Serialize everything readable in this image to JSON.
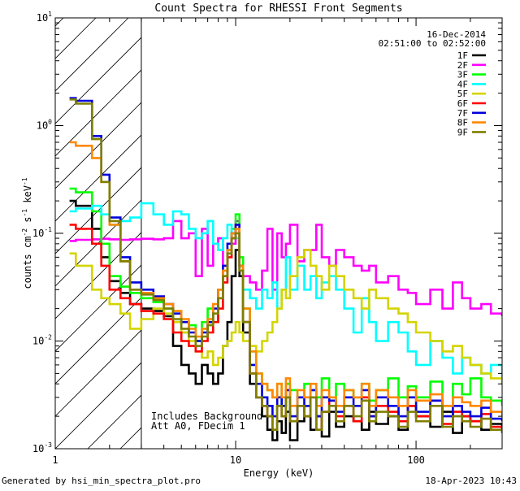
{
  "chart_data": {
    "type": "line",
    "title": "Count Spectra for RHESSI Front Segments",
    "xlabel": "Energy (keV)",
    "ylabel": "counts cm",
    "ylabel_sup1": "-2",
    "ylabel_mid": " s",
    "ylabel_sup2": "-1",
    "ylabel_end": " keV",
    "ylabel_sup3": "-1",
    "x_scale": "log",
    "y_scale": "log",
    "xlim": [
      1,
      300
    ],
    "ylim": [
      0.001,
      10
    ],
    "x_tick_labels": [
      {
        "value": 1,
        "label": "1"
      },
      {
        "value": 10,
        "label": "10"
      },
      {
        "value": 100,
        "label": "100"
      }
    ],
    "y_tick_labels": [
      {
        "value": 10,
        "base": "10",
        "exp": "1"
      },
      {
        "value": 1,
        "base": "10",
        "exp": "0"
      },
      {
        "value": 0.1,
        "base": "10",
        "exp": "-1"
      },
      {
        "value": 0.01,
        "base": "10",
        "exp": "-2"
      },
      {
        "value": 0.001,
        "base": "10",
        "exp": "-3"
      }
    ],
    "date_text": "16-Dec-2014",
    "time_range_text": "02:51:00 to 02:52:00",
    "hatched_region_max_energy": 3,
    "annotations": [
      "Includes Background",
      "Att A0, FDecim 1"
    ],
    "footer_left": "Generated by hsi_min_spectra_plot.pro",
    "footer_right": "18-Apr-2023 10:43",
    "legend_position": "top-right",
    "series": [
      {
        "name": "1F",
        "color": "#000000",
        "x": [
          1.2,
          1.3,
          1.6,
          1.8,
          2.0,
          2.3,
          2.6,
          3.0,
          3.5,
          4.0,
          4.5,
          5.0,
          5.5,
          6.0,
          6.5,
          7.0,
          7.5,
          8.0,
          8.5,
          9.0,
          9.5,
          10.0,
          10.5,
          11.0,
          12,
          13,
          14,
          15,
          16,
          17,
          18,
          19,
          20,
          22,
          24,
          26,
          28,
          30,
          33,
          36,
          40,
          45,
          50,
          55,
          60,
          70,
          80,
          90,
          100,
          120,
          140,
          160,
          180,
          200,
          230,
          260,
          300
        ],
        "y": [
          0.2,
          0.18,
          0.11,
          0.06,
          0.036,
          0.028,
          0.022,
          0.02,
          0.019,
          0.017,
          0.009,
          0.006,
          0.005,
          0.004,
          0.006,
          0.005,
          0.004,
          0.005,
          0.009,
          0.015,
          0.04,
          0.07,
          0.04,
          0.012,
          0.004,
          0.003,
          0.002,
          0.0015,
          0.0012,
          0.0018,
          0.0014,
          0.0022,
          0.0012,
          0.0018,
          0.0025,
          0.0015,
          0.002,
          0.0013,
          0.0022,
          0.0016,
          0.002,
          0.0018,
          0.0015,
          0.0022,
          0.0017,
          0.002,
          0.0015,
          0.0025,
          0.002,
          0.0016,
          0.0022,
          0.0014,
          0.002,
          0.0018,
          0.0015,
          0.0017,
          0.0014
        ]
      },
      {
        "name": "2F",
        "color": "#ff00ff",
        "x": [
          1.2,
          1.3,
          1.6,
          1.8,
          2.0,
          2.3,
          2.6,
          3.0,
          3.5,
          4.0,
          4.5,
          5.0,
          5.5,
          6.0,
          6.5,
          7.0,
          7.5,
          8.0,
          8.5,
          9.0,
          9.5,
          10.0,
          10.5,
          11.0,
          12,
          13,
          14,
          15,
          16,
          17,
          18,
          19,
          20,
          22,
          24,
          26,
          28,
          30,
          33,
          36,
          40,
          45,
          50,
          55,
          60,
          70,
          80,
          90,
          100,
          120,
          140,
          160,
          180,
          200,
          230,
          260,
          300
        ],
        "y": [
          0.085,
          0.087,
          0.088,
          0.089,
          0.088,
          0.087,
          0.088,
          0.089,
          0.088,
          0.09,
          0.13,
          0.09,
          0.1,
          0.04,
          0.11,
          0.05,
          0.08,
          0.09,
          0.05,
          0.07,
          0.08,
          0.13,
          0.05,
          0.04,
          0.035,
          0.03,
          0.045,
          0.11,
          0.03,
          0.1,
          0.06,
          0.08,
          0.12,
          0.055,
          0.07,
          0.07,
          0.12,
          0.06,
          0.05,
          0.07,
          0.06,
          0.05,
          0.045,
          0.05,
          0.035,
          0.04,
          0.03,
          0.028,
          0.022,
          0.03,
          0.02,
          0.035,
          0.025,
          0.02,
          0.022,
          0.018,
          0.017
        ]
      },
      {
        "name": "3F",
        "color": "#00ff00",
        "x": [
          1.2,
          1.3,
          1.6,
          1.8,
          2.0,
          2.3,
          2.6,
          3.0,
          3.5,
          4.0,
          4.5,
          5.0,
          5.5,
          6.0,
          6.5,
          7.0,
          7.5,
          8.0,
          8.5,
          9.0,
          9.5,
          10.0,
          10.5,
          11.0,
          12,
          13,
          14,
          15,
          16,
          17,
          18,
          19,
          20,
          22,
          24,
          26,
          28,
          30,
          33,
          36,
          40,
          45,
          50,
          55,
          60,
          70,
          80,
          90,
          100,
          120,
          140,
          160,
          180,
          200,
          230,
          260,
          300
        ],
        "y": [
          0.26,
          0.24,
          0.16,
          0.08,
          0.04,
          0.032,
          0.028,
          0.025,
          0.023,
          0.02,
          0.015,
          0.012,
          0.014,
          0.01,
          0.015,
          0.02,
          0.015,
          0.025,
          0.04,
          0.07,
          0.11,
          0.15,
          0.06,
          0.02,
          0.008,
          0.005,
          0.004,
          0.0035,
          0.003,
          0.004,
          0.0025,
          0.004,
          0.0035,
          0.003,
          0.004,
          0.0035,
          0.003,
          0.0045,
          0.003,
          0.004,
          0.0035,
          0.003,
          0.004,
          0.0028,
          0.0035,
          0.0045,
          0.003,
          0.0038,
          0.003,
          0.0042,
          0.0025,
          0.004,
          0.0032,
          0.0045,
          0.003,
          0.0028,
          0.0025
        ]
      },
      {
        "name": "4F",
        "color": "#00ffff",
        "x": [
          1.2,
          1.3,
          1.6,
          1.8,
          2.0,
          2.3,
          2.6,
          3.0,
          3.5,
          4.0,
          4.5,
          5.0,
          5.5,
          6.0,
          6.5,
          7.0,
          7.5,
          8.0,
          8.5,
          9.0,
          9.5,
          10.0,
          10.5,
          11.0,
          12,
          13,
          14,
          15,
          16,
          17,
          18,
          19,
          20,
          22,
          24,
          26,
          28,
          30,
          33,
          36,
          40,
          45,
          50,
          55,
          60,
          70,
          80,
          90,
          100,
          120,
          140,
          160,
          180,
          200,
          230,
          260,
          300
        ],
        "y": [
          0.16,
          0.17,
          0.18,
          0.15,
          0.12,
          0.13,
          0.14,
          0.19,
          0.15,
          0.12,
          0.16,
          0.15,
          0.11,
          0.09,
          0.1,
          0.13,
          0.08,
          0.07,
          0.09,
          0.12,
          0.1,
          0.09,
          0.05,
          0.03,
          0.025,
          0.02,
          0.03,
          0.025,
          0.035,
          0.02,
          0.03,
          0.06,
          0.03,
          0.05,
          0.03,
          0.04,
          0.025,
          0.035,
          0.04,
          0.03,
          0.02,
          0.012,
          0.025,
          0.015,
          0.01,
          0.015,
          0.012,
          0.008,
          0.006,
          0.01,
          0.007,
          0.005,
          0.007,
          0.006,
          0.005,
          0.006,
          0.004
        ]
      },
      {
        "name": "5F",
        "color": "#d4d400",
        "x": [
          1.2,
          1.3,
          1.6,
          1.8,
          2.0,
          2.3,
          2.6,
          3.0,
          3.5,
          4.0,
          4.5,
          5.0,
          5.5,
          6.0,
          6.5,
          7.0,
          7.5,
          8.0,
          8.5,
          9.0,
          9.5,
          10.0,
          10.5,
          11.0,
          12,
          13,
          14,
          15,
          16,
          17,
          18,
          19,
          20,
          22,
          24,
          26,
          28,
          30,
          33,
          36,
          40,
          45,
          50,
          55,
          60,
          70,
          80,
          90,
          100,
          120,
          140,
          160,
          180,
          200,
          230,
          260,
          300
        ],
        "y": [
          0.065,
          0.05,
          0.03,
          0.025,
          0.022,
          0.018,
          0.013,
          0.016,
          0.02,
          0.018,
          0.015,
          0.012,
          0.01,
          0.008,
          0.007,
          0.008,
          0.006,
          0.007,
          0.009,
          0.01,
          0.012,
          0.015,
          0.012,
          0.01,
          0.009,
          0.008,
          0.01,
          0.012,
          0.015,
          0.02,
          0.03,
          0.025,
          0.04,
          0.06,
          0.07,
          0.05,
          0.04,
          0.03,
          0.05,
          0.04,
          0.03,
          0.025,
          0.02,
          0.03,
          0.025,
          0.02,
          0.018,
          0.015,
          0.012,
          0.01,
          0.008,
          0.009,
          0.007,
          0.006,
          0.005,
          0.0045,
          0.004
        ]
      },
      {
        "name": "6F",
        "color": "#ff0000",
        "x": [
          1.2,
          1.3,
          1.6,
          1.8,
          2.0,
          2.3,
          2.6,
          3.0,
          3.5,
          4.0,
          4.5,
          5.0,
          5.5,
          6.0,
          6.5,
          7.0,
          7.5,
          8.0,
          8.5,
          9.0,
          9.5,
          10.0,
          10.5,
          11.0,
          12,
          13,
          14,
          15,
          16,
          17,
          18,
          19,
          20,
          22,
          24,
          26,
          28,
          30,
          33,
          36,
          40,
          45,
          50,
          55,
          60,
          70,
          80,
          90,
          100,
          120,
          140,
          160,
          180,
          200,
          230,
          260,
          300
        ],
        "y": [
          0.12,
          0.11,
          0.08,
          0.05,
          0.03,
          0.025,
          0.022,
          0.019,
          0.018,
          0.016,
          0.012,
          0.01,
          0.009,
          0.008,
          0.01,
          0.012,
          0.015,
          0.02,
          0.035,
          0.06,
          0.09,
          0.12,
          0.05,
          0.015,
          0.005,
          0.003,
          0.0025,
          0.002,
          0.0015,
          0.0025,
          0.002,
          0.003,
          0.0018,
          0.0025,
          0.002,
          0.003,
          0.0015,
          0.0022,
          0.0028,
          0.002,
          0.0025,
          0.0018,
          0.003,
          0.002,
          0.0025,
          0.0022,
          0.0018,
          0.0025,
          0.002,
          0.0028,
          0.0017,
          0.0022,
          0.002,
          0.0018,
          0.0021,
          0.0016,
          0.0015
        ]
      },
      {
        "name": "7F",
        "color": "#0000dd",
        "x": [
          1.2,
          1.3,
          1.6,
          1.8,
          2.0,
          2.3,
          2.6,
          3.0,
          3.5,
          4.0,
          4.5,
          5.0,
          5.5,
          6.0,
          6.5,
          7.0,
          7.5,
          8.0,
          8.5,
          9.0,
          9.5,
          10.0,
          10.5,
          11.0,
          12,
          13,
          14,
          15,
          16,
          17,
          18,
          19,
          20,
          22,
          24,
          26,
          28,
          30,
          33,
          36,
          40,
          45,
          50,
          55,
          60,
          70,
          80,
          90,
          100,
          120,
          140,
          160,
          180,
          200,
          230,
          260,
          300
        ],
        "y": [
          1.8,
          1.7,
          0.8,
          0.35,
          0.14,
          0.06,
          0.035,
          0.03,
          0.026,
          0.022,
          0.018,
          0.015,
          0.012,
          0.01,
          0.012,
          0.015,
          0.02,
          0.03,
          0.05,
          0.08,
          0.1,
          0.12,
          0.05,
          0.015,
          0.006,
          0.004,
          0.003,
          0.0025,
          0.002,
          0.003,
          0.0025,
          0.0035,
          0.002,
          0.003,
          0.0025,
          0.0035,
          0.002,
          0.003,
          0.0028,
          0.0022,
          0.003,
          0.0025,
          0.0035,
          0.002,
          0.003,
          0.0025,
          0.002,
          0.003,
          0.0022,
          0.0028,
          0.002,
          0.0025,
          0.0022,
          0.002,
          0.0024,
          0.0019,
          0.0018
        ]
      },
      {
        "name": "8F",
        "color": "#ff8800",
        "x": [
          1.2,
          1.3,
          1.6,
          1.8,
          2.0,
          2.3,
          2.6,
          3.0,
          3.5,
          4.0,
          4.5,
          5.0,
          5.5,
          6.0,
          6.5,
          7.0,
          7.5,
          8.0,
          8.5,
          9.0,
          9.5,
          10.0,
          10.5,
          11.0,
          12,
          13,
          14,
          15,
          16,
          17,
          18,
          19,
          20,
          22,
          24,
          26,
          28,
          30,
          33,
          36,
          40,
          45,
          50,
          55,
          60,
          70,
          80,
          90,
          100,
          120,
          140,
          160,
          180,
          200,
          230,
          260,
          300
        ],
        "y": [
          0.7,
          0.65,
          0.5,
          0.3,
          0.12,
          0.055,
          0.03,
          0.028,
          0.025,
          0.022,
          0.019,
          0.016,
          0.013,
          0.011,
          0.013,
          0.016,
          0.022,
          0.03,
          0.045,
          0.07,
          0.1,
          0.11,
          0.05,
          0.02,
          0.008,
          0.005,
          0.004,
          0.0035,
          0.003,
          0.004,
          0.003,
          0.0045,
          0.0025,
          0.0035,
          0.003,
          0.004,
          0.0025,
          0.0035,
          0.003,
          0.0025,
          0.0035,
          0.003,
          0.004,
          0.0025,
          0.0035,
          0.003,
          0.0025,
          0.0035,
          0.0028,
          0.0032,
          0.0025,
          0.003,
          0.0027,
          0.0025,
          0.0028,
          0.0022,
          0.002
        ]
      },
      {
        "name": "9F",
        "color": "#7f7f00",
        "x": [
          1.2,
          1.3,
          1.6,
          1.8,
          2.0,
          2.3,
          2.6,
          3.0,
          3.5,
          4.0,
          4.5,
          5.0,
          5.5,
          6.0,
          6.5,
          7.0,
          7.5,
          8.0,
          8.5,
          9.0,
          9.5,
          10.0,
          10.5,
          11.0,
          12,
          13,
          14,
          15,
          16,
          17,
          18,
          19,
          20,
          22,
          24,
          26,
          28,
          30,
          33,
          36,
          40,
          45,
          50,
          55,
          60,
          70,
          80,
          90,
          100,
          120,
          140,
          160,
          180,
          200,
          230,
          260,
          300
        ],
        "y": [
          1.75,
          1.6,
          0.75,
          0.3,
          0.13,
          0.055,
          0.03,
          0.027,
          0.024,
          0.02,
          0.016,
          0.013,
          0.011,
          0.009,
          0.011,
          0.014,
          0.018,
          0.025,
          0.04,
          0.065,
          0.09,
          0.1,
          0.045,
          0.015,
          0.005,
          0.003,
          0.0025,
          0.002,
          0.0015,
          0.0025,
          0.002,
          0.003,
          0.0018,
          0.0025,
          0.002,
          0.003,
          0.0015,
          0.0022,
          0.0025,
          0.0018,
          0.0025,
          0.002,
          0.0028,
          0.0018,
          0.0022,
          0.002,
          0.0016,
          0.0022,
          0.0018,
          0.0025,
          0.0016,
          0.002,
          0.0018,
          0.0016,
          0.0019,
          0.0015,
          0.0014
        ]
      }
    ]
  }
}
